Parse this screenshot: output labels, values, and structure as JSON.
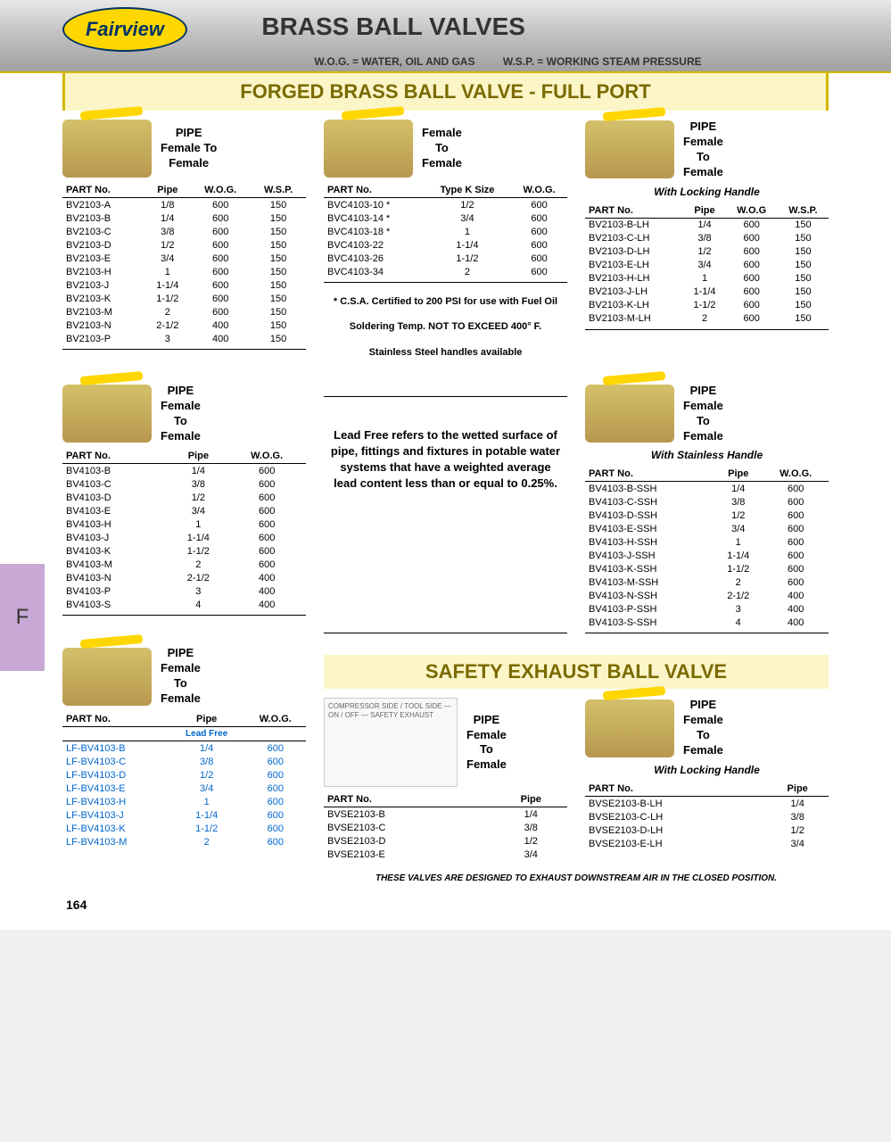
{
  "header": {
    "logo_text": "Fairview",
    "title": "BRASS BALL VALVES",
    "def1": "W.O.G. = WATER, OIL AND GAS",
    "def2": "W.S.P. = WORKING STEAM PRESSURE"
  },
  "side_tab": "F",
  "section1": {
    "title": "FORGED BRASS BALL VALVE - FULL PORT",
    "t1": {
      "conn": "PIPE\nFemale To\nFemale",
      "h": [
        "PART No.",
        "Pipe",
        "W.O.G.",
        "W.S.P."
      ],
      "rows": [
        [
          "BV2103-A",
          "1/8",
          "600",
          "150"
        ],
        [
          "BV2103-B",
          "1/4",
          "600",
          "150"
        ],
        [
          "BV2103-C",
          "3/8",
          "600",
          "150"
        ],
        [
          "BV2103-D",
          "1/2",
          "600",
          "150"
        ],
        [
          "BV2103-E",
          "3/4",
          "600",
          "150"
        ],
        [
          "BV2103-H",
          "1",
          "600",
          "150"
        ],
        [
          "BV2103-J",
          "1-1/4",
          "600",
          "150"
        ],
        [
          "BV2103-K",
          "1-1/2",
          "600",
          "150"
        ],
        [
          "BV2103-M",
          "2",
          "600",
          "150"
        ],
        [
          "BV2103-N",
          "2-1/2",
          "400",
          "150"
        ],
        [
          "BV2103-P",
          "3",
          "400",
          "150"
        ]
      ]
    },
    "t2": {
      "conn": "Female\nTo\nFemale",
      "h": [
        "PART No.",
        "Type K Size",
        "W.O.G."
      ],
      "rows": [
        [
          "BVC4103-10 *",
          "1/2",
          "600"
        ],
        [
          "BVC4103-14 *",
          "3/4",
          "600"
        ],
        [
          "BVC4103-18 *",
          "1",
          "600"
        ],
        [
          "BVC4103-22",
          "1-1/4",
          "600"
        ],
        [
          "BVC4103-26",
          "1-1/2",
          "600"
        ],
        [
          "BVC4103-34",
          "2",
          "600"
        ]
      ],
      "note1": "* C.S.A. Certified to 200 PSI for use with Fuel Oil",
      "note2": "Soldering Temp. NOT TO EXCEED 400° F.",
      "note3": "Stainless Steel handles available"
    },
    "t3": {
      "conn": "PIPE\nFemale\nTo\nFemale",
      "sub": "With Locking Handle",
      "h": [
        "PART No.",
        "Pipe",
        "W.O.G",
        "W.S.P."
      ],
      "rows": [
        [
          "BV2103-B-LH",
          "1/4",
          "600",
          "150"
        ],
        [
          "BV2103-C-LH",
          "3/8",
          "600",
          "150"
        ],
        [
          "BV2103-D-LH",
          "1/2",
          "600",
          "150"
        ],
        [
          "BV2103-E-LH",
          "3/4",
          "600",
          "150"
        ],
        [
          "BV2103-H-LH",
          "1",
          "600",
          "150"
        ],
        [
          "BV2103-J-LH",
          "1-1/4",
          "600",
          "150"
        ],
        [
          "BV2103-K-LH",
          "1-1/2",
          "600",
          "150"
        ],
        [
          "BV2103-M-LH",
          "2",
          "600",
          "150"
        ]
      ]
    },
    "t4": {
      "conn": "PIPE\nFemale\nTo\nFemale",
      "h": [
        "PART No.",
        "Pipe",
        "W.O.G."
      ],
      "rows": [
        [
          "BV4103-B",
          "1/4",
          "600"
        ],
        [
          "BV4103-C",
          "3/8",
          "600"
        ],
        [
          "BV4103-D",
          "1/2",
          "600"
        ],
        [
          "BV4103-E",
          "3/4",
          "600"
        ],
        [
          "BV4103-H",
          "1",
          "600"
        ],
        [
          "BV4103-J",
          "1-1/4",
          "600"
        ],
        [
          "BV4103-K",
          "1-1/2",
          "600"
        ],
        [
          "BV4103-M",
          "2",
          "600"
        ],
        [
          "BV4103-N",
          "2-1/2",
          "400"
        ],
        [
          "BV4103-P",
          "3",
          "400"
        ],
        [
          "BV4103-S",
          "4",
          "400"
        ]
      ]
    },
    "info_block": "Lead Free refers to the wetted surface of pipe, fittings and fixtures in potable water systems that have a weighted average lead content less than or equal to 0.25%.",
    "t5": {
      "conn": "PIPE\nFemale\nTo\nFemale",
      "sub": "With Stainless Handle",
      "h": [
        "PART No.",
        "Pipe",
        "W.O.G."
      ],
      "rows": [
        [
          "BV4103-B-SSH",
          "1/4",
          "600"
        ],
        [
          "BV4103-C-SSH",
          "3/8",
          "600"
        ],
        [
          "BV4103-D-SSH",
          "1/2",
          "600"
        ],
        [
          "BV4103-E-SSH",
          "3/4",
          "600"
        ],
        [
          "BV4103-H-SSH",
          "1",
          "600"
        ],
        [
          "BV4103-J-SSH",
          "1-1/4",
          "600"
        ],
        [
          "BV4103-K-SSH",
          "1-1/2",
          "600"
        ],
        [
          "BV4103-M-SSH",
          "2",
          "600"
        ],
        [
          "BV4103-N-SSH",
          "2-1/2",
          "400"
        ],
        [
          "BV4103-P-SSH",
          "3",
          "400"
        ],
        [
          "BV4103-S-SSH",
          "4",
          "400"
        ]
      ]
    },
    "t6": {
      "conn": "PIPE\nFemale\nTo\nFemale",
      "leadfree": "Lead Free",
      "h": [
        "PART No.",
        "Pipe",
        "W.O.G."
      ],
      "rows": [
        [
          "LF-BV4103-B",
          "1/4",
          "600"
        ],
        [
          "LF-BV4103-C",
          "3/8",
          "600"
        ],
        [
          "LF-BV4103-D",
          "1/2",
          "600"
        ],
        [
          "LF-BV4103-E",
          "3/4",
          "600"
        ],
        [
          "LF-BV4103-H",
          "1",
          "600"
        ],
        [
          "LF-BV4103-J",
          "1-1/4",
          "600"
        ],
        [
          "LF-BV4103-K",
          "1-1/2",
          "600"
        ],
        [
          "LF-BV4103-M",
          "2",
          "600"
        ]
      ]
    }
  },
  "section2": {
    "title": "SAFETY EXHAUST BALL VALVE",
    "diagram_text": "COMPRESSOR SIDE / TOOL SIDE — ON / OFF — SAFETY EXHAUST",
    "t7": {
      "conn": "PIPE\nFemale\nTo\nFemale",
      "h": [
        "PART No.",
        "Pipe"
      ],
      "rows": [
        [
          "BVSE2103-B",
          "1/4"
        ],
        [
          "BVSE2103-C",
          "3/8"
        ],
        [
          "BVSE2103-D",
          "1/2"
        ],
        [
          "BVSE2103-E",
          "3/4"
        ]
      ]
    },
    "t8": {
      "conn": "PIPE\nFemale\nTo\nFemale",
      "sub": "With Locking Handle",
      "h": [
        "PART No.",
        "Pipe"
      ],
      "rows": [
        [
          "BVSE2103-B-LH",
          "1/4"
        ],
        [
          "BVSE2103-C-LH",
          "3/8"
        ],
        [
          "BVSE2103-D-LH",
          "1/2"
        ],
        [
          "BVSE2103-E-LH",
          "3/4"
        ]
      ]
    },
    "footnote": "THESE VALVES ARE DESIGNED TO EXHAUST DOWNSTREAM AIR IN THE CLOSED POSITION."
  },
  "page_number": "164"
}
